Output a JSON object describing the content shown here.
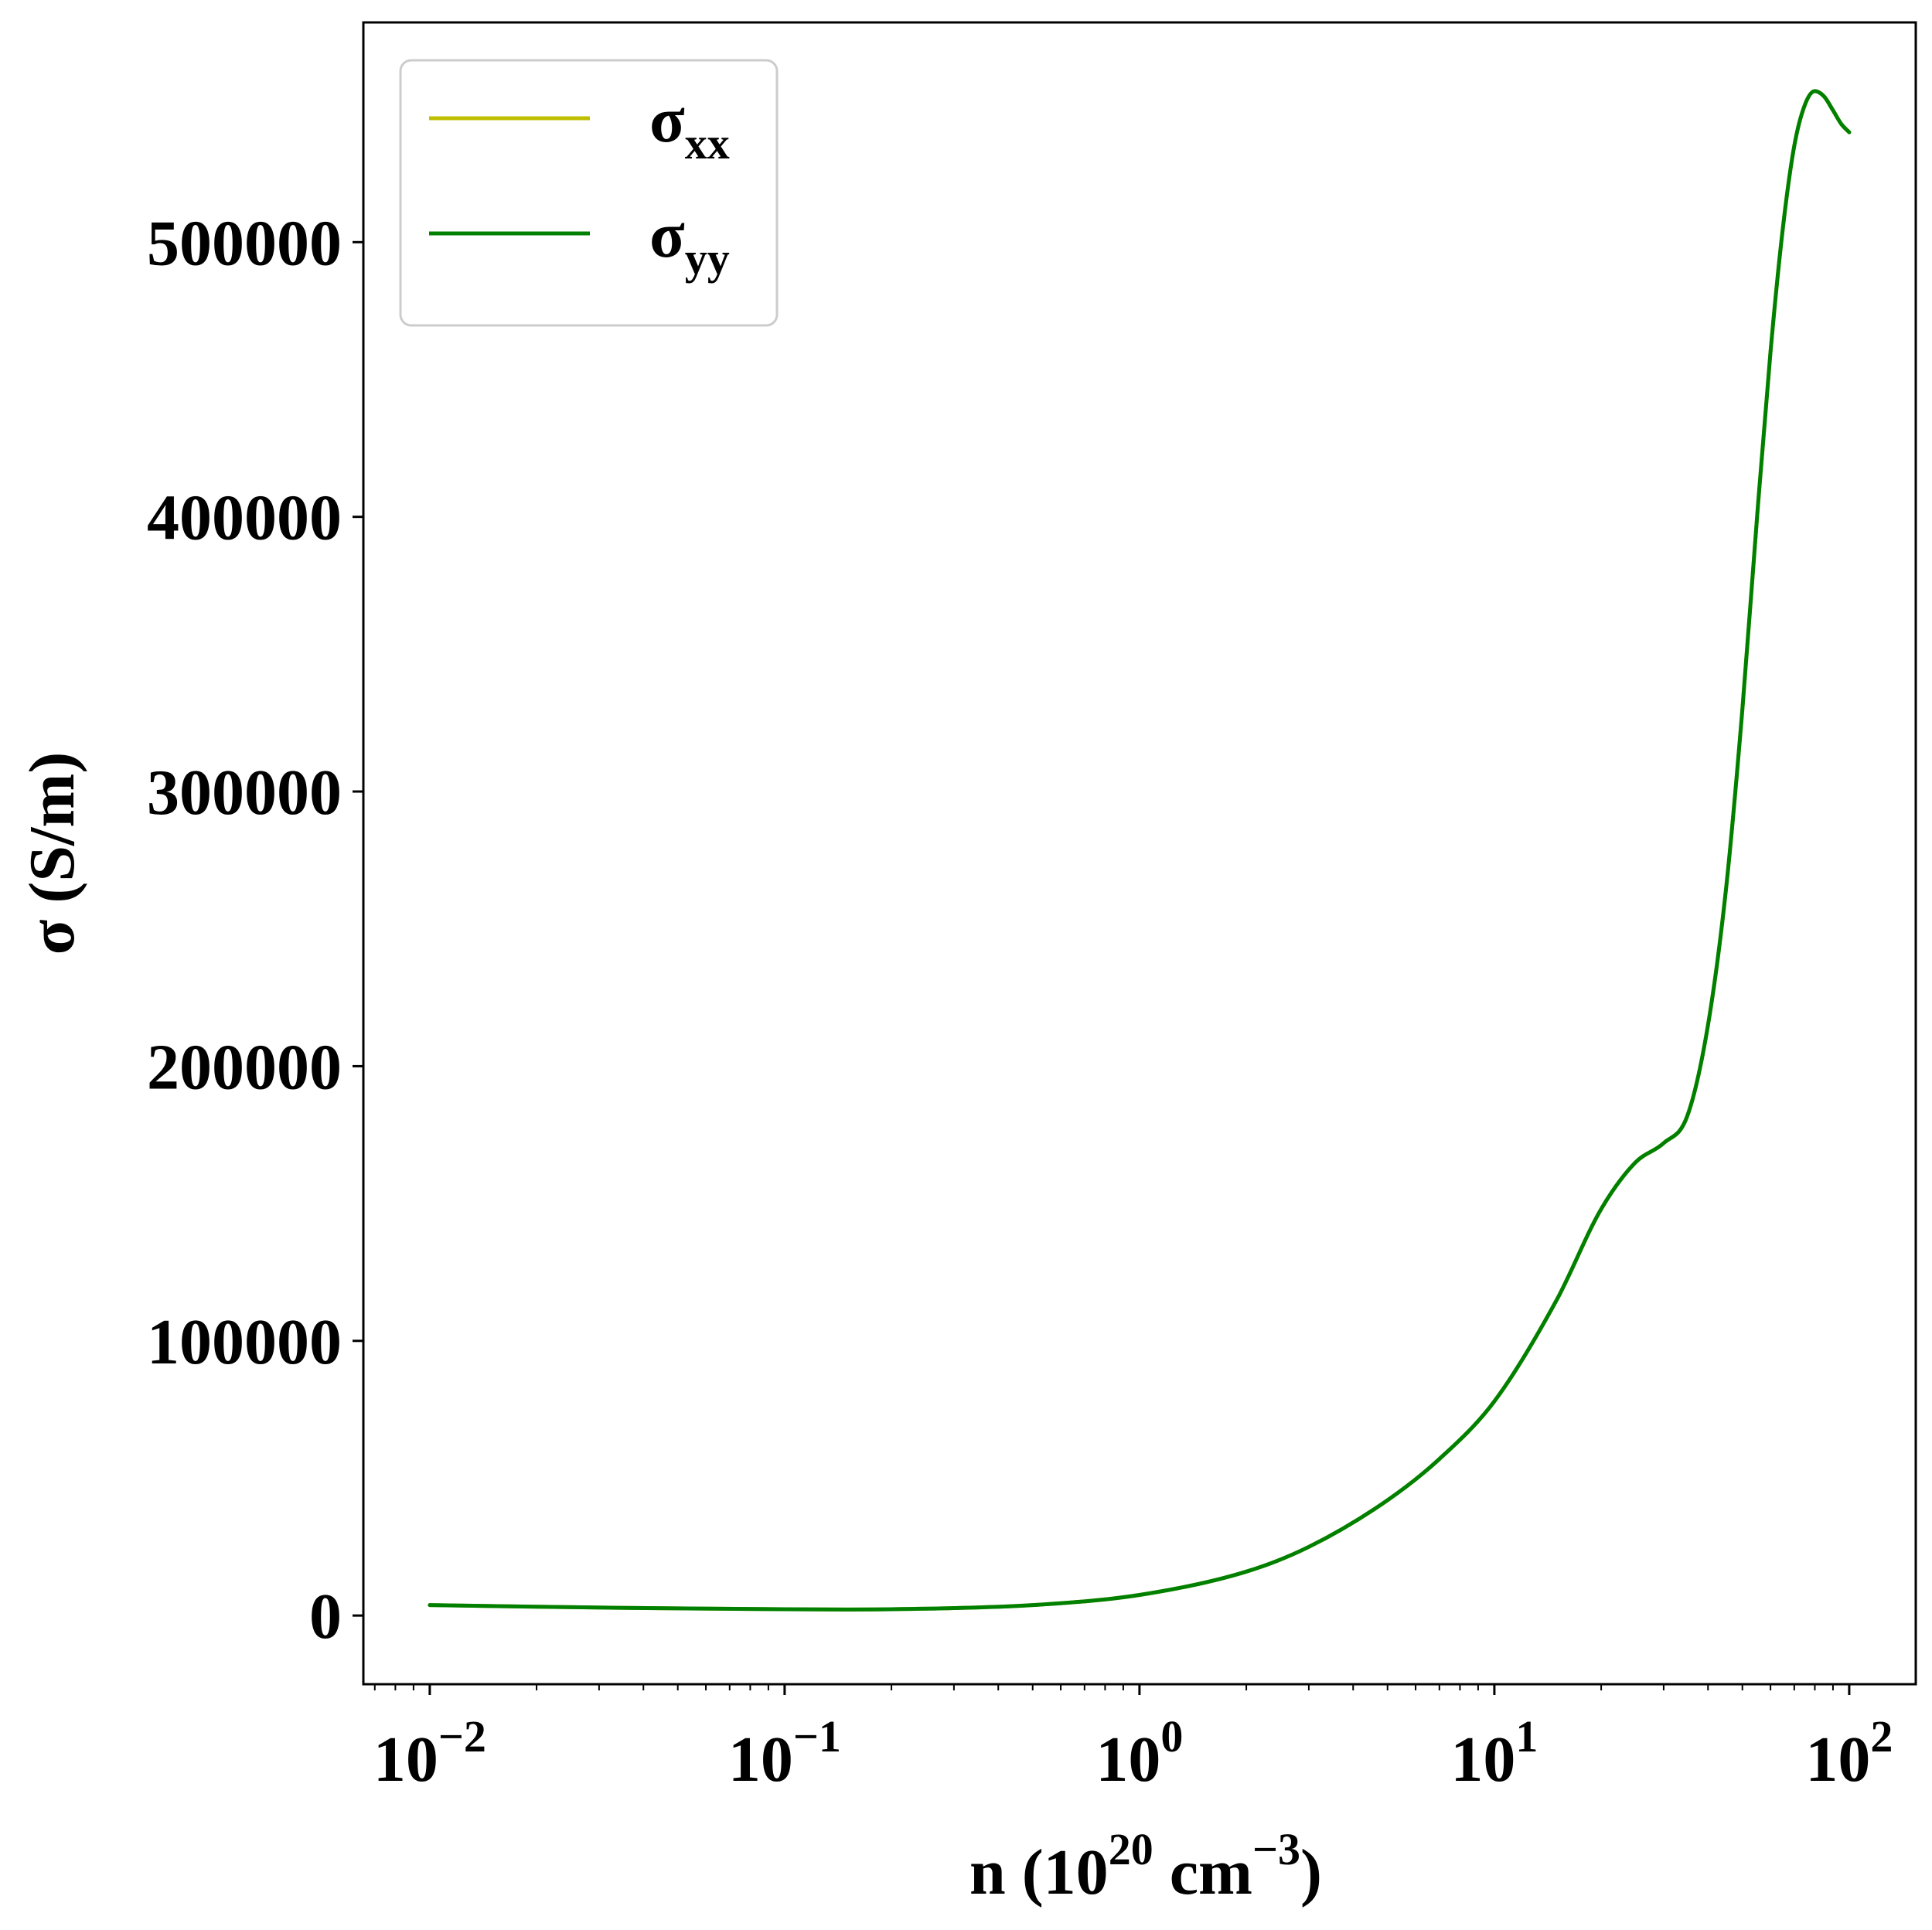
{
  "chart_data": {
    "type": "line",
    "title": "",
    "xlabel": {
      "base": "n (10",
      "exp1": "20",
      "mid": " cm",
      "exp2": "−3",
      "tail": ")"
    },
    "ylabel": "σ (S/m)",
    "xscale": "log",
    "xlim": [
      0.0065,
      154
    ],
    "ylim": [
      -25000,
      580000
    ],
    "x_ticks": [
      {
        "value": 0.01,
        "base": "10",
        "exp": "−2"
      },
      {
        "value": 0.1,
        "base": "10",
        "exp": "−1"
      },
      {
        "value": 1,
        "base": "10",
        "exp": "0"
      },
      {
        "value": 10,
        "base": "10",
        "exp": "1"
      },
      {
        "value": 100,
        "base": "10",
        "exp": "2"
      }
    ],
    "y_ticks": [
      {
        "value": 0,
        "label": "0"
      },
      {
        "value": 100000,
        "label": "100000"
      },
      {
        "value": 200000,
        "label": "200000"
      },
      {
        "value": 300000,
        "label": "300000"
      },
      {
        "value": 400000,
        "label": "400000"
      },
      {
        "value": 500000,
        "label": "500000"
      }
    ],
    "grid": false,
    "legend_position": "top-left",
    "series": [
      {
        "name": "σ",
        "name_sub": "xx",
        "color": "#bfbf00",
        "x": [
          0.01,
          0.02,
          0.05,
          0.1,
          0.15,
          0.2,
          0.3,
          0.5,
          1,
          2,
          3,
          5,
          7,
          10,
          15,
          20,
          25,
          30,
          35,
          40,
          45,
          50,
          55,
          60,
          65,
          70,
          75,
          80,
          85,
          90,
          95,
          100
        ],
        "y": [
          3800,
          3200,
          2600,
          2300,
          2200,
          2300,
          2700,
          3800,
          7500,
          16000,
          25000,
          42000,
          57000,
          78000,
          115000,
          148000,
          165000,
          172000,
          182000,
          215000,
          265000,
          330000,
          400000,
          460000,
          505000,
          535000,
          550000,
          555000,
          553000,
          548000,
          543000,
          540000
        ]
      },
      {
        "name": "σ",
        "name_sub": "yy",
        "color": "#008000",
        "x": [
          0.01,
          0.02,
          0.05,
          0.1,
          0.15,
          0.2,
          0.3,
          0.5,
          1,
          2,
          3,
          5,
          7,
          10,
          15,
          20,
          25,
          30,
          35,
          40,
          45,
          50,
          55,
          60,
          65,
          70,
          75,
          80,
          85,
          90,
          95,
          100
        ],
        "y": [
          3800,
          3200,
          2600,
          2300,
          2200,
          2300,
          2700,
          3800,
          7500,
          16000,
          25000,
          42000,
          57000,
          78000,
          115000,
          148000,
          165000,
          172000,
          182000,
          215000,
          265000,
          330000,
          400000,
          460000,
          505000,
          535000,
          550000,
          555000,
          553000,
          548000,
          543000,
          540000
        ]
      }
    ]
  }
}
